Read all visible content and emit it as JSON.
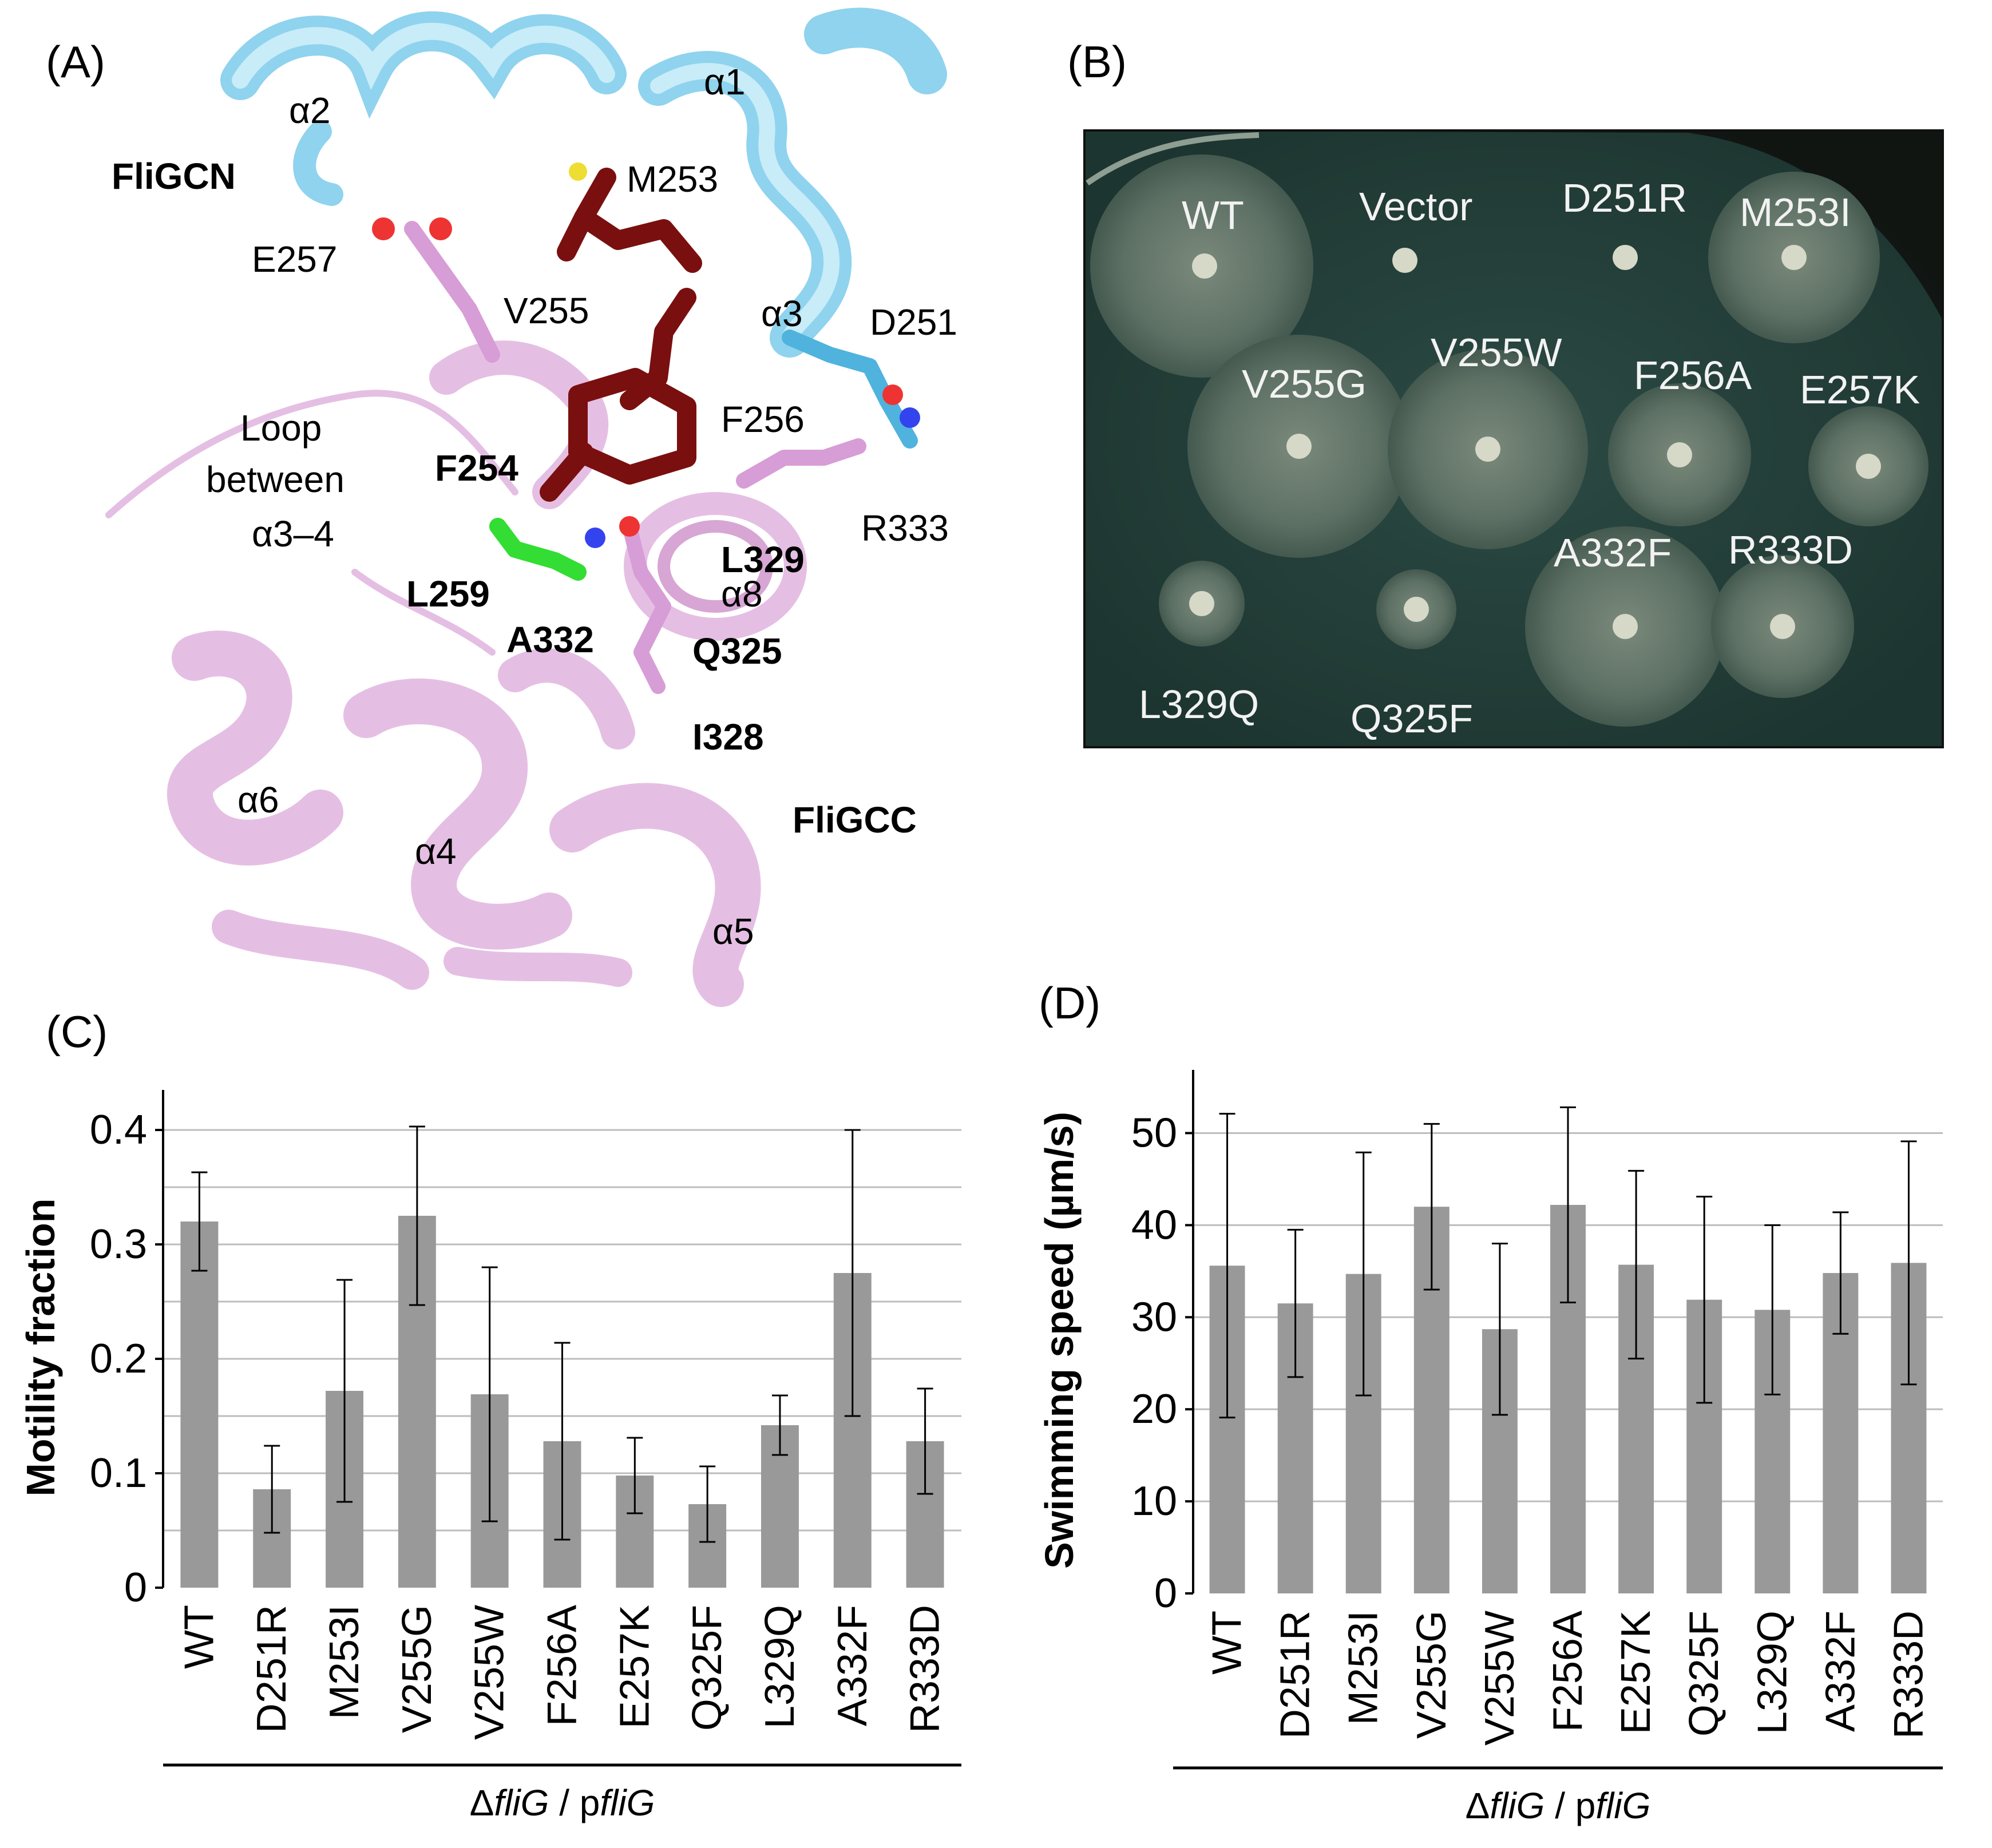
{
  "panels": {
    "a": {
      "label": "(A)",
      "helix_labels": [
        "α2",
        "α1",
        "α3",
        "α3–4",
        "α8",
        "α6",
        "α4",
        "α5"
      ],
      "domain_labels": [
        "FliGCN",
        "FliGCC"
      ],
      "residues_bold": [
        "F254",
        "L259",
        "A332",
        "L329",
        "Q325",
        "I328"
      ],
      "residues_plain": [
        "M253",
        "E257",
        "V255",
        "D251",
        "F256",
        "R333"
      ],
      "loop_text": [
        "Loop",
        "between"
      ],
      "colors": {
        "fligcn": "#8fd3ee",
        "fligcc": "#e5bfe3",
        "dark_residue": "#7a0f0f",
        "green_residue": "#33dd33"
      }
    },
    "b": {
      "label": "(B)",
      "plate_labels": [
        "WT",
        "Vector",
        "D251R",
        "M253I",
        "V255G",
        "V255W",
        "F256A",
        "E257K",
        "A332F",
        "R333D",
        "L329Q",
        "Q325F"
      ]
    },
    "c": {
      "label": "(C)"
    },
    "d": {
      "label": "(D)"
    }
  },
  "chart_data": [
    {
      "type": "bar",
      "panel": "(C)",
      "categories": [
        "WT",
        "D251R",
        "M253I",
        "V255G",
        "V255W",
        "F256A",
        "E257K",
        "Q325F",
        "L329Q",
        "A332F",
        "R333D"
      ],
      "values": [
        0.32,
        0.086,
        0.172,
        0.325,
        0.169,
        0.128,
        0.098,
        0.073,
        0.142,
        0.275,
        0.128
      ],
      "errors": [
        0.043,
        0.038,
        0.097,
        0.078,
        0.111,
        0.086,
        0.033,
        0.033,
        0.026,
        0.125,
        0.046
      ],
      "ylabel": "Motility fraction",
      "xlabel_parts": [
        "Δ",
        "fliG",
        " / p",
        "fliG"
      ],
      "ylim": [
        0,
        0.42
      ],
      "yticks": [
        0,
        0.1,
        0.2,
        0.3,
        0.4
      ],
      "ytick_labels": [
        "0",
        "0.1",
        "0.2",
        "0.3",
        "0.4"
      ],
      "grid": true,
      "bar_color": "#999999"
    },
    {
      "type": "bar",
      "panel": "(D)",
      "categories": [
        "WT",
        "D251R",
        "M253I",
        "V255G",
        "V255W",
        "F256A",
        "E257K",
        "Q325F",
        "L329Q",
        "A332F",
        "R333D"
      ],
      "values": [
        35.6,
        31.5,
        34.7,
        42.0,
        28.7,
        42.2,
        35.7,
        31.9,
        30.8,
        34.8,
        35.9
      ],
      "errors": [
        16.5,
        8.0,
        13.2,
        9.0,
        9.3,
        10.6,
        10.2,
        11.2,
        9.2,
        6.6,
        13.2
      ],
      "ylabel": "Swimming speed (µm/s)",
      "xlabel_parts": [
        "Δ",
        "fliG",
        " / p",
        "fliG"
      ],
      "ylim": [
        0,
        55
      ],
      "yticks": [
        0,
        10,
        20,
        30,
        40,
        50
      ],
      "ytick_labels": [
        "0",
        "10",
        "20",
        "30",
        "40",
        "50"
      ],
      "grid": true,
      "bar_color": "#999999"
    }
  ]
}
